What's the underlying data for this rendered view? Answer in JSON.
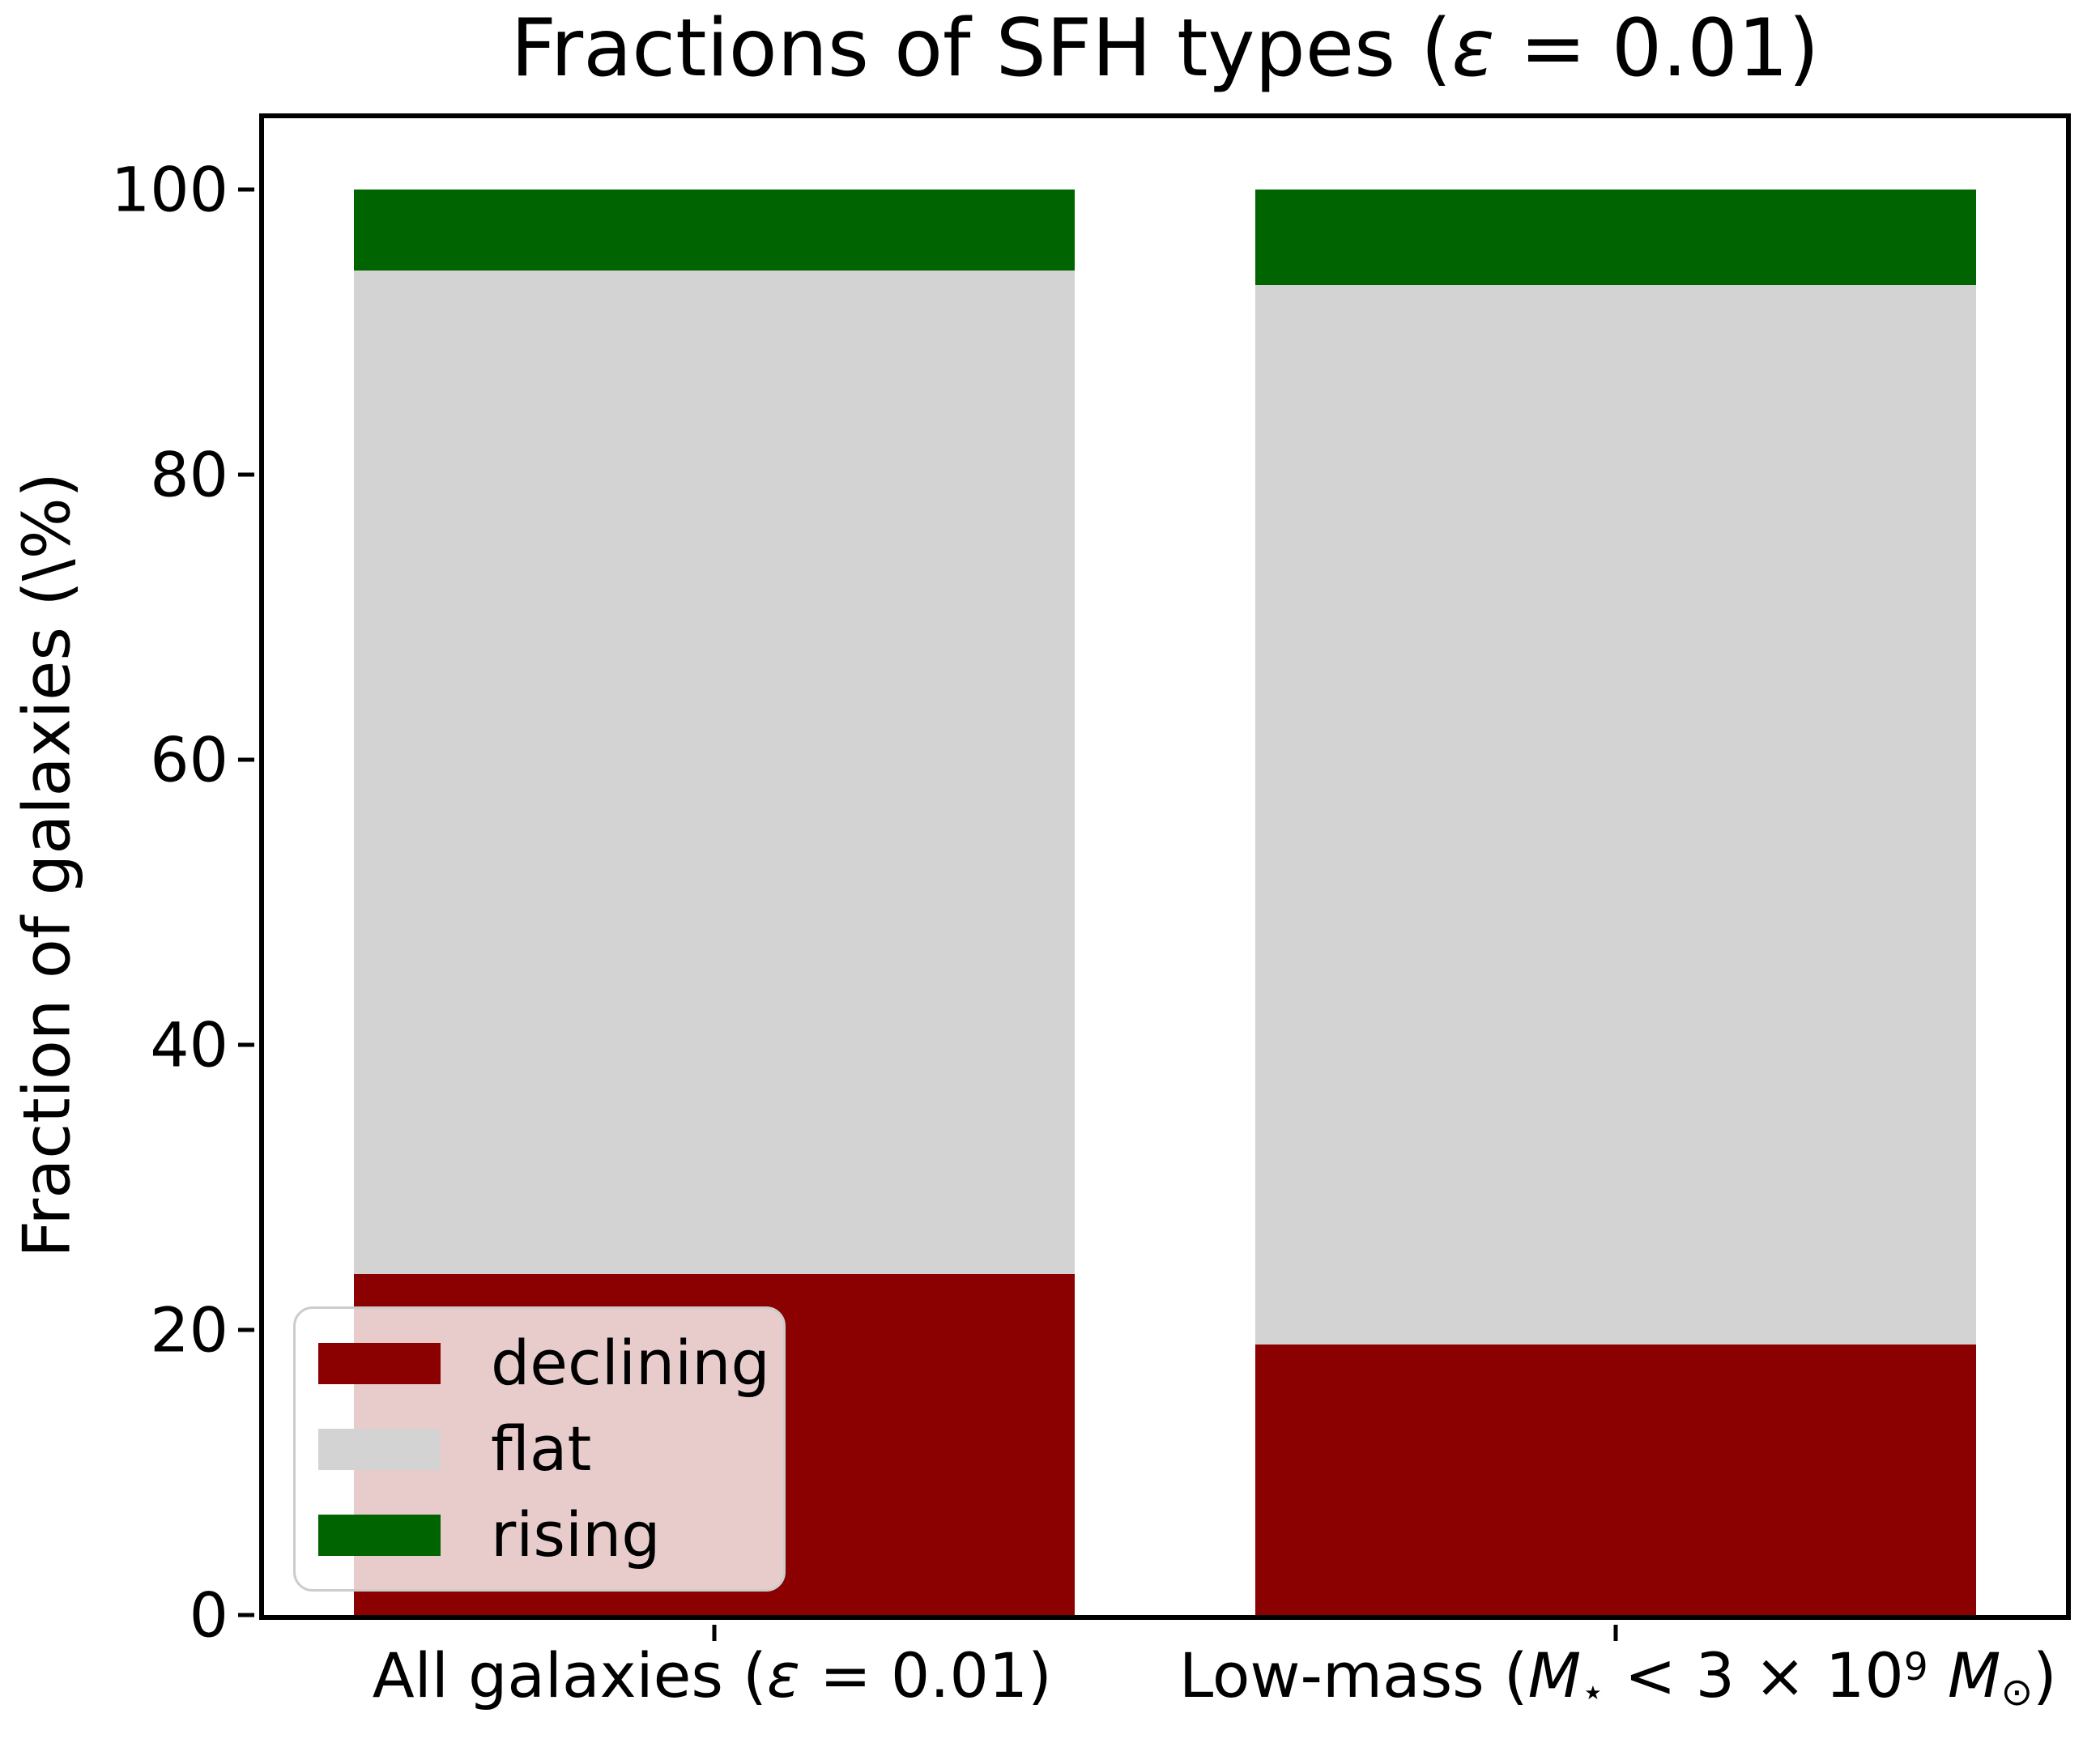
{
  "title": {
    "text": "Fractions of SFH types (ε = 0.01)",
    "parts": [
      {
        "v": "Fractions of SFH types ("
      },
      {
        "v": "ε",
        "style": "italic"
      },
      {
        "v": " = 0.01)"
      }
    ]
  },
  "y_axis": {
    "label": "Fraction of galaxies (\\%)",
    "tick_labels": [
      "0",
      "20",
      "40",
      "60",
      "80",
      "100"
    ]
  },
  "x_axis": {
    "tick_labels": [
      {
        "text": "All galaxies (ε = 0.01)",
        "parts": [
          {
            "v": "All galaxies ("
          },
          {
            "v": "ε",
            "style": "italic"
          },
          {
            "v": " = 0.01)"
          }
        ]
      },
      {
        "text": "Low-mass (M⋆ < 3 × 10⁹ M⊙)",
        "parts": [
          {
            "v": "Low-mass ("
          },
          {
            "v": "M",
            "style": "italic"
          },
          {
            "v": "⋆",
            "style": "sub"
          },
          {
            "v": " < 3 × 10"
          },
          {
            "v": "9",
            "style": "sup"
          },
          {
            "v": " "
          },
          {
            "v": "M",
            "style": "italic"
          },
          {
            "v": "⊙",
            "style": "sub"
          },
          {
            "v": ")"
          }
        ]
      }
    ]
  },
  "chart_data": {
    "type": "bar",
    "stacked": true,
    "title": "Fractions of SFH types (ε = 0.01)",
    "ylabel": "Fraction of galaxies (\\%)",
    "categories": [
      "All galaxies (ε = 0.01)",
      "Low-mass (M⋆ < 3 × 10⁹ M⊙)"
    ],
    "series": [
      {
        "name": "declining",
        "color": "#8b0000",
        "values": [
          23.9,
          19.0
        ]
      },
      {
        "name": "flat",
        "color": "#d3d3d3",
        "values": [
          70.4,
          74.3
        ]
      },
      {
        "name": "rising",
        "color": "#006400",
        "values": [
          5.7,
          6.7
        ]
      }
    ],
    "yticks": [
      0,
      20,
      40,
      60,
      80,
      100
    ],
    "ylim": [
      0,
      105
    ],
    "grid": false,
    "legend_position": "lower left",
    "legend_order": [
      "declining",
      "flat",
      "rising"
    ],
    "bar_width_fraction": 0.8
  }
}
